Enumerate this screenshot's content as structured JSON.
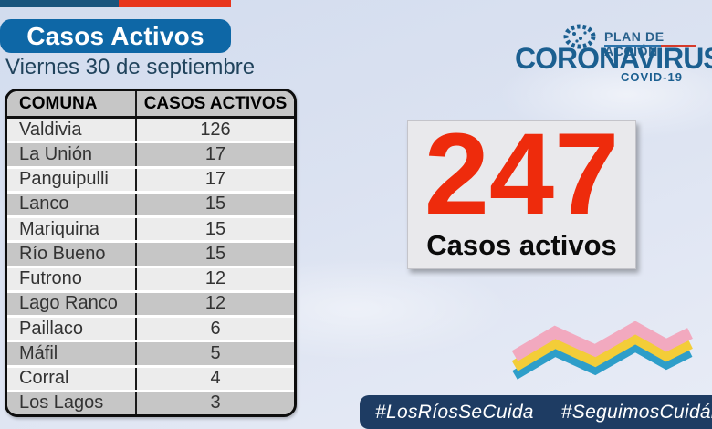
{
  "header": {
    "title": "Casos Activos",
    "date": "Viernes 30 de septiembre"
  },
  "logo": {
    "plan": "PLAN DE ACCIÓN",
    "brand": "CORONAVIRUS",
    "sub": "COVID-19"
  },
  "table": {
    "columns": [
      "COMUNA",
      "CASOS ACTIVOS"
    ],
    "rows": [
      [
        "Valdivia",
        "126"
      ],
      [
        "La Unión",
        "17"
      ],
      [
        "Panguipulli",
        "17"
      ],
      [
        "Lanco",
        "15"
      ],
      [
        "Mariquina",
        "15"
      ],
      [
        "Río Bueno",
        "15"
      ],
      [
        "Futrono",
        "12"
      ],
      [
        "Lago Ranco",
        "12"
      ],
      [
        "Paillaco",
        "6"
      ],
      [
        "Máfil",
        "5"
      ],
      [
        "Corral",
        "4"
      ],
      [
        "Los Lagos",
        "3"
      ]
    ]
  },
  "summary": {
    "value": "247",
    "label": "Casos activos"
  },
  "footer": {
    "hashtags": [
      "#LosRíosSeCuida",
      "#SeguimosCuidándonos"
    ]
  },
  "colors": {
    "title_blue": "#0e67a6",
    "strip_blue": "#19557d",
    "strip_red": "#e8351c",
    "summary_red": "#ee2b0c",
    "logo_blue": "#1b5f90",
    "footer_navy": "#1e3c63",
    "zigzag_pink": "#f2a9bf",
    "zigzag_yellow": "#f3cd38",
    "zigzag_blue": "#2e9ec9"
  }
}
